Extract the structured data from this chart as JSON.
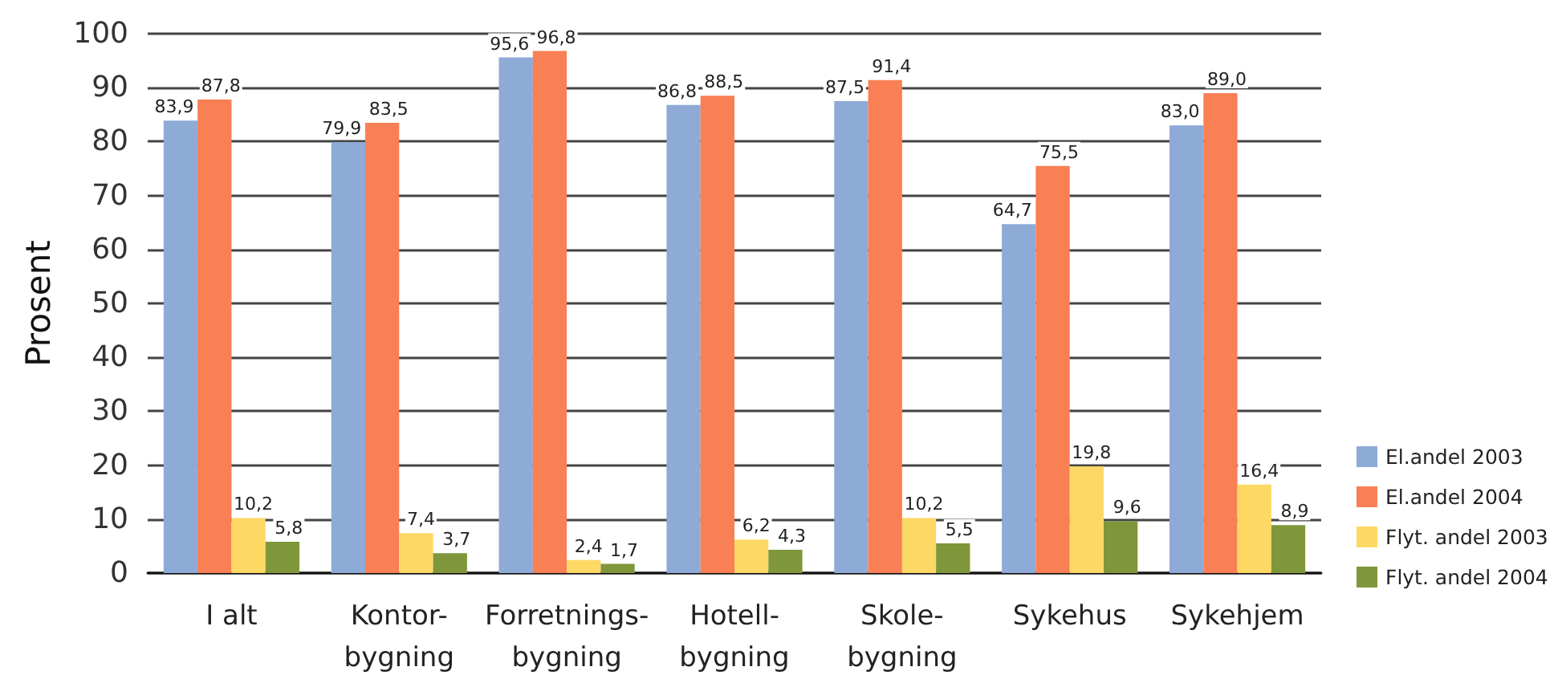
{
  "chart_data": {
    "type": "bar",
    "ylabel": "Prosent",
    "categories": [
      "I alt",
      "Kontor-\nbygning",
      "Forretnings-\nbygning",
      "Hotell-\nbygning",
      "Skole-\nbygning",
      "Sykehus",
      "Sykehjem"
    ],
    "series": [
      {
        "name": "El.andel 2003",
        "color": "#8eaad6",
        "values": [
          83.9,
          79.9,
          95.6,
          86.8,
          87.5,
          64.7,
          83.0
        ],
        "value_labels": [
          "83,9",
          "79,9",
          "95,6",
          "86,8",
          "87,5",
          "64,7",
          "83,0"
        ]
      },
      {
        "name": "El.andel 2004",
        "color": "#f97f55",
        "values": [
          87.8,
          83.5,
          96.8,
          88.5,
          91.4,
          75.5,
          89.0
        ],
        "value_labels": [
          "87,8",
          "83,5",
          "96,8",
          "88,5",
          "91,4",
          "75,5",
          "89,0"
        ]
      },
      {
        "name": "Flyt. andel 2003",
        "color": "#fdd865",
        "values": [
          10.2,
          7.4,
          2.4,
          6.2,
          10.2,
          19.8,
          16.4
        ],
        "value_labels": [
          "10,2",
          "7,4",
          "2,4",
          "6,2",
          "10,2",
          "19,8",
          "16,4"
        ]
      },
      {
        "name": "Flyt. andel 2004",
        "color": "#7f973a",
        "values": [
          5.8,
          3.7,
          1.7,
          4.3,
          5.5,
          9.6,
          8.9
        ],
        "value_labels": [
          "5,8",
          "3,7",
          "1,7",
          "4,3",
          "5,5",
          "9,6",
          "8,9"
        ]
      }
    ],
    "ylim": [
      0,
      100
    ],
    "yticks": [
      0,
      10,
      20,
      30,
      40,
      50,
      60,
      70,
      80,
      90,
      100
    ],
    "grid": "y",
    "legend": "bottom right"
  }
}
